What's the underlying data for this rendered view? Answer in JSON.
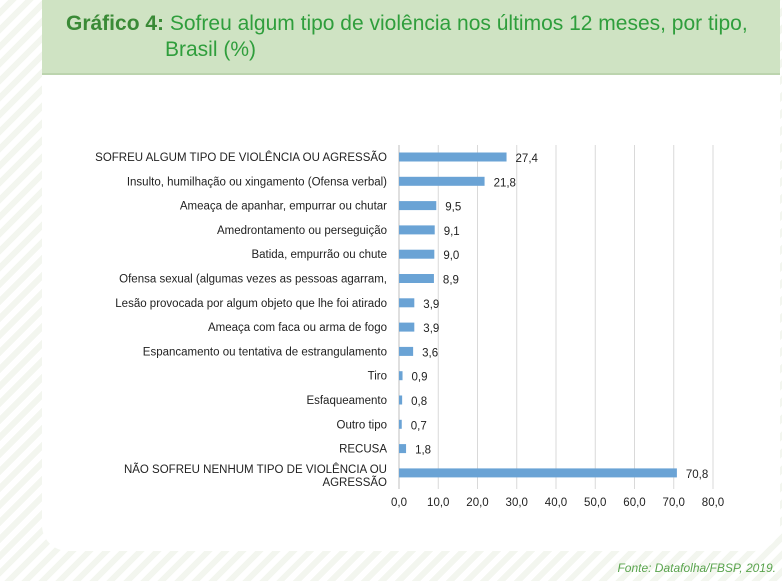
{
  "header": {
    "title_lead": "Gráfico 4:",
    "title_line1": "Sofreu algum tipo de violência nos últimos 12 meses, por tipo,",
    "title_line2": "Brasil (%)"
  },
  "footer": {
    "source": "Fonte: Datafolha/FBSP, 2019."
  },
  "colors": {
    "bar": "#6aa3d5",
    "grid": "#d9d9d9",
    "header": "#cfe3c3",
    "title": "#2f9e3c"
  },
  "chart_data": {
    "type": "bar",
    "orientation": "horizontal",
    "title": "Sofreu algum tipo de violência nos últimos 12 meses, por tipo, Brasil (%)",
    "categories": [
      "SOFREU ALGUM TIPO DE VIOLÊNCIA OU AGRESSÃO",
      "Insulto, humilhação ou xingamento (Ofensa verbal)",
      "Ameaça de apanhar, empurrar ou chutar",
      "Amedrontamento ou perseguição",
      "Batida, empurrão ou chute",
      "Ofensa sexual (algumas vezes as pessoas agarram,",
      "Lesão provocada por algum objeto que lhe foi atirado",
      "Ameaça com faca ou arma de fogo",
      "Espancamento ou tentativa de estrangulamento",
      "Tiro",
      "Esfaqueamento",
      "Outro tipo",
      "RECUSA",
      "NÃO SOFREU NENHUM TIPO DE VIOLÊNCIA OU AGRESSÃO"
    ],
    "values": [
      27.4,
      21.8,
      9.5,
      9.1,
      9.0,
      8.9,
      3.9,
      3.9,
      3.6,
      0.9,
      0.8,
      0.7,
      1.8,
      70.8
    ],
    "value_labels": [
      "27,4",
      "21,8",
      "9,5",
      "9,1",
      "9,0",
      "8,9",
      "3,9",
      "3,9",
      "3,6",
      "0,9",
      "0,8",
      "0,7",
      "1,8",
      "70,8"
    ],
    "xlim": [
      0,
      80
    ],
    "xticks": [
      0,
      10,
      20,
      30,
      40,
      50,
      60,
      70,
      80
    ],
    "xtick_labels": [
      "0,0",
      "10,0",
      "20,0",
      "30,0",
      "40,0",
      "50,0",
      "60,0",
      "70,0",
      "80,0"
    ],
    "grid": "vertical",
    "legend": "none"
  }
}
